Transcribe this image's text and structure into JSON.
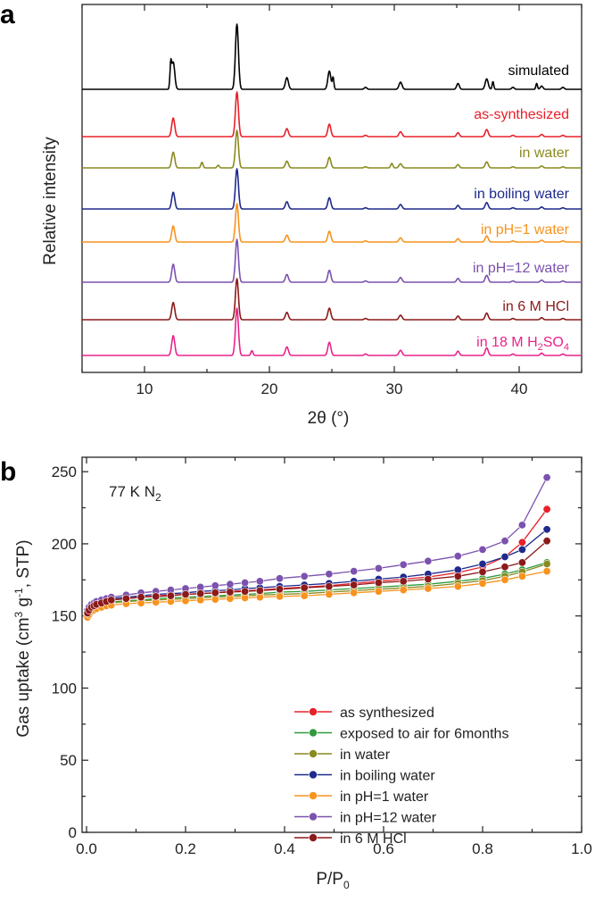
{
  "panel_a": {
    "letter": "a",
    "chart_data": {
      "type": "line",
      "xlabel": "2θ (°)",
      "ylabel": "Relative intensity",
      "xlim": [
        5,
        45
      ],
      "xticks": [
        10,
        20,
        30,
        40
      ],
      "yticks": [],
      "peaks": [
        {
          "x": 12.3,
          "w": 0.17,
          "h": 0.42
        },
        {
          "x": 17.4,
          "w": 0.17,
          "h": 1.0
        },
        {
          "x": 21.4,
          "w": 0.17,
          "h": 0.18
        },
        {
          "x": 24.8,
          "w": 0.17,
          "h": 0.28
        },
        {
          "x": 27.7,
          "w": 0.15,
          "h": 0.03
        },
        {
          "x": 30.5,
          "w": 0.17,
          "h": 0.11
        },
        {
          "x": 35.1,
          "w": 0.15,
          "h": 0.09
        },
        {
          "x": 37.4,
          "w": 0.17,
          "h": 0.16
        },
        {
          "x": 39.5,
          "w": 0.15,
          "h": 0.03
        },
        {
          "x": 41.8,
          "w": 0.15,
          "h": 0.05
        },
        {
          "x": 43.5,
          "w": 0.15,
          "h": 0.03
        }
      ],
      "series": [
        {
          "name": "simulated",
          "color": "#000000",
          "baseline": 100,
          "scale": 73,
          "extra_peaks": [
            {
              "x": 12.1,
              "w": 0.09,
              "h": 0.35
            },
            {
              "x": 25.1,
              "w": 0.09,
              "h": 0.18
            },
            {
              "x": 37.9,
              "w": 0.09,
              "h": 0.12
            },
            {
              "x": 41.4,
              "w": 0.09,
              "h": 0.09
            }
          ]
        },
        {
          "name": "as-synthesized",
          "color": "#e8202a",
          "baseline": 153,
          "scale": 50,
          "extra_peaks": []
        },
        {
          "name": "in water",
          "color": "#8a8a20",
          "baseline": 188,
          "scale": 42,
          "extra_peaks": [
            {
              "x": 14.6,
              "w": 0.12,
              "h": 0.15
            },
            {
              "x": 29.8,
              "w": 0.12,
              "h": 0.12
            },
            {
              "x": 15.9,
              "w": 0.12,
              "h": 0.07
            }
          ]
        },
        {
          "name": "in boiling water",
          "color": "#1f2a8c",
          "baseline": 234,
          "scale": 45,
          "extra_peaks": []
        },
        {
          "name": "in pH=1 water",
          "color": "#f7931e",
          "baseline": 271,
          "scale": 43,
          "extra_peaks": []
        },
        {
          "name": "in pH=12 water",
          "color": "#7b52ae",
          "baseline": 316,
          "scale": 48,
          "extra_peaks": []
        },
        {
          "name": "in 6 M HCl",
          "color": "#8b1a1a",
          "baseline": 358,
          "scale": 46,
          "extra_peaks": []
        },
        {
          "name": "in 18 M H2SO4",
          "color": "#e8238b",
          "baseline": 398,
          "scale": 53,
          "extra_peaks": [
            {
              "x": 18.6,
              "w": 0.12,
              "h": 0.1
            }
          ]
        }
      ],
      "labels": {
        "simulated": "simulated",
        "as_synthesized": "as-synthesized",
        "in_water": "in water",
        "in_boiling_water": "in boiling water",
        "in_ph1": "in pH=1 water",
        "in_ph12": "in pH=12 water",
        "in_6m_hcl": "in 6 M HCl",
        "in_18m_pre": "in 18 M H",
        "in_18m_sub2": "2",
        "in_18m_so": "SO",
        "in_18m_sub4": "4"
      }
    }
  },
  "panel_b": {
    "letter": "b",
    "annotation_main": "77 K N",
    "annotation_sub": "2",
    "xlabel_main": "P/P",
    "xlabel_sub": "0",
    "ylabel_1": "Gas uptake (cm",
    "ylabel_sup3": "3",
    "ylabel_2": " g",
    "ylabel_supm1": "-1",
    "ylabel_3": ", STP)",
    "chart_data": {
      "type": "line",
      "xlim": [
        0,
        1.0
      ],
      "ylim": [
        0,
        260
      ],
      "xticks": [
        0.0,
        0.2,
        0.4,
        0.6,
        0.8,
        1.0
      ],
      "xtick_labels": [
        "0.0",
        "0.2",
        "0.4",
        "0.6",
        "0.8",
        "1.0"
      ],
      "yticks": [
        0,
        50,
        100,
        150,
        200,
        250
      ],
      "ytick_labels": [
        "0",
        "50",
        "100",
        "150",
        "200",
        "250"
      ],
      "x": [
        0.002,
        0.005,
        0.01,
        0.015,
        0.02,
        0.03,
        0.04,
        0.05,
        0.08,
        0.11,
        0.14,
        0.17,
        0.2,
        0.23,
        0.26,
        0.29,
        0.32,
        0.35,
        0.39,
        0.44,
        0.49,
        0.54,
        0.59,
        0.64,
        0.69,
        0.75,
        0.8,
        0.845,
        0.88,
        0.93
      ],
      "series": [
        {
          "name": "as synthesized",
          "color": "#e8202a",
          "values": [
            152,
            154,
            156,
            157,
            158,
            159,
            160,
            161,
            162,
            163,
            164,
            164.5,
            165,
            165.5,
            166,
            167,
            167.5,
            168,
            169,
            170,
            171,
            172.5,
            174,
            175.5,
            177,
            180,
            184,
            191,
            201,
            224
          ]
        },
        {
          "name": "exposed to air for 6months",
          "color": "#2f9a3f",
          "values": [
            151,
            153,
            155,
            156,
            157,
            158,
            159,
            159.5,
            160.5,
            161,
            162,
            162.5,
            163,
            163.5,
            164,
            164.5,
            165,
            165.5,
            166.5,
            167,
            168,
            169,
            170,
            171,
            172,
            174,
            176,
            179,
            182,
            187
          ]
        },
        {
          "name": "in water",
          "color": "#8a8a20",
          "values": [
            150,
            152,
            154,
            155,
            156,
            157,
            158,
            159,
            160,
            160.5,
            161,
            161.5,
            162,
            162.5,
            163,
            163.5,
            164,
            164.5,
            165,
            165.5,
            166.5,
            167.5,
            168.5,
            169.5,
            170.5,
            172.5,
            174.5,
            177.5,
            180.5,
            186
          ]
        },
        {
          "name": "in boiling water",
          "color": "#1f2a8c",
          "values": [
            153,
            155,
            157,
            158,
            159,
            160,
            161,
            162,
            163,
            164,
            165,
            165.5,
            166,
            167,
            167.5,
            168,
            169,
            169.5,
            170.5,
            171.5,
            172.5,
            174,
            175.5,
            177,
            179,
            182,
            186,
            191,
            196,
            210
          ]
        },
        {
          "name": "in pH=1 water",
          "color": "#f7931e",
          "values": [
            149,
            151,
            153,
            154,
            155,
            156,
            157,
            157.5,
            158.5,
            159,
            159.5,
            160,
            160.5,
            161,
            161.5,
            162,
            162.5,
            163,
            163.5,
            164,
            165,
            166,
            167,
            168,
            169,
            170.5,
            172.5,
            175,
            177.5,
            181
          ]
        },
        {
          "name": "in pH=12 water",
          "color": "#7b52ae",
          "values": [
            154,
            156,
            158,
            159,
            160,
            161,
            162,
            163,
            164.5,
            166,
            167,
            168,
            169,
            170,
            171,
            172,
            173,
            174,
            176,
            177.5,
            179,
            181,
            183,
            185.5,
            188,
            191.5,
            196,
            202,
            213,
            246
          ]
        },
        {
          "name": "in 6 M HCl",
          "color": "#8b1a1a",
          "values": [
            152,
            154,
            156,
            157,
            158,
            159,
            160,
            161,
            162,
            163,
            163.5,
            164,
            165,
            165.5,
            166,
            166.5,
            167,
            167.5,
            168.5,
            169.5,
            170.5,
            171.5,
            173,
            174,
            175.5,
            177.5,
            180.5,
            184,
            187,
            202
          ]
        }
      ],
      "legend_order": [
        0,
        1,
        2,
        3,
        4,
        5,
        6
      ],
      "legend_placement": "bottom-right"
    }
  }
}
